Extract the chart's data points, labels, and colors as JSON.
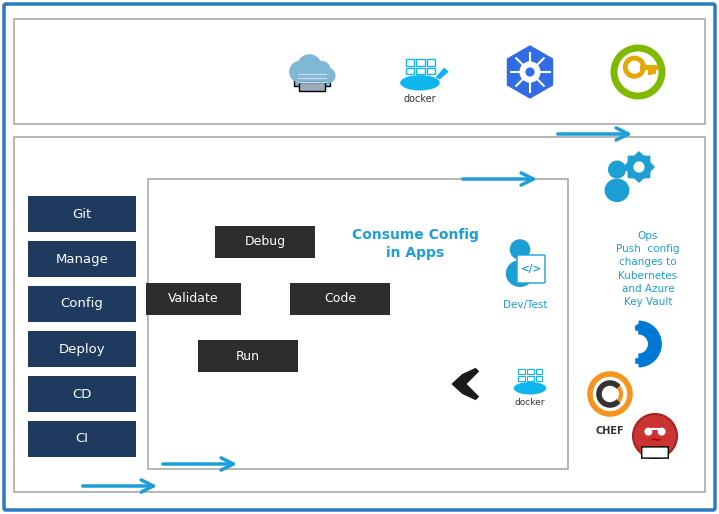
{
  "fig_w": 7.19,
  "fig_h": 5.14,
  "dpi": 100,
  "bg": "#FFFFFF",
  "border_color": "#2B79C2",
  "box_edge": "#AAAAAA",
  "nav_buttons": [
    "Git",
    "Manage",
    "Config",
    "Deploy",
    "CD",
    "CI"
  ],
  "nav_color": "#1E3A5F",
  "nav_text": "#FFFFFF",
  "dark_btn_color": "#2D2D2D",
  "dark_btn_text": "#FFFFFF",
  "consume_color": "#1B9FD4",
  "ops_color": "#1B9FD4",
  "arrow_color": "#1B9FD4",
  "dev_icon_color": "#1B9FD4",
  "ops_text": "Ops\nPush  config\nchanges to\nKubernetes\nand Azure\nKey Vault"
}
